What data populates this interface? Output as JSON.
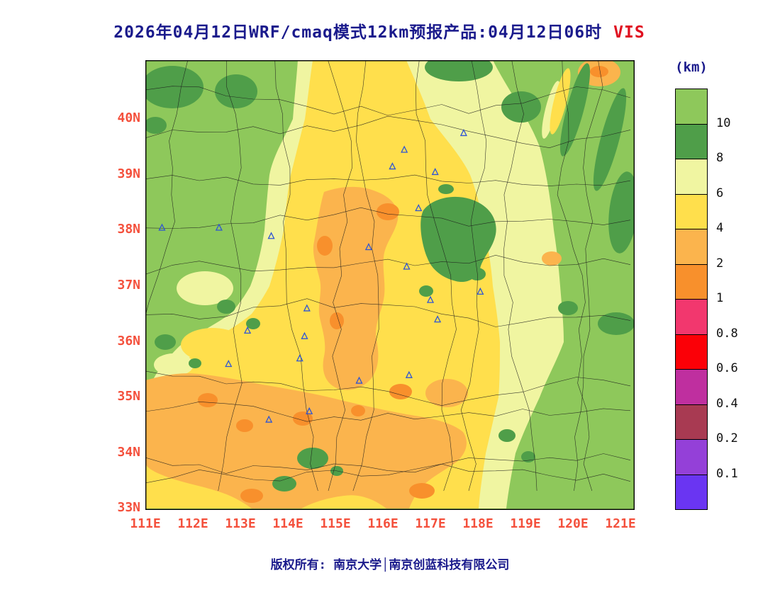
{
  "title": {
    "main": "2026年04月12日WRF/cmaq模式12km预报产品:04月12日06时",
    "variable": "VIS"
  },
  "legend": {
    "unit": "(km)",
    "boundary_labels": [
      "10",
      "8",
      "6",
      "4",
      "2",
      "1",
      "0.8",
      "0.6",
      "0.4",
      "0.2",
      "0.1"
    ],
    "colors_top_to_bottom": [
      "#8EC85B",
      "#4F9E49",
      "#F0F5A1",
      "#FFDF4C",
      "#FBB44D",
      "#F8902C",
      "#F2376E",
      "#FB0007",
      "#BF2F9F",
      "#A83A52",
      "#9440D8",
      "#6A35F2"
    ]
  },
  "axes": {
    "lat_labels": [
      "40N",
      "39N",
      "38N",
      "37N",
      "36N",
      "35N",
      "34N",
      "33N"
    ],
    "lon_labels": [
      "111E",
      "112E",
      "113E",
      "114E",
      "115E",
      "116E",
      "117E",
      "118E",
      "119E",
      "120E",
      "121E"
    ]
  },
  "footer": {
    "copyright": "版权所有: 南京大学│南京创蓝科技有限公司"
  },
  "chart_data": {
    "type": "heatmap",
    "title": "2026年04月12日WRF/cmaq模式12km预报产品:04月12日06时 VIS",
    "variable": "visibility forecast (WRF/CMAQ 12km)",
    "unit": "km",
    "lon_range": [
      111,
      121.3
    ],
    "lat_range": [
      33,
      41.05
    ],
    "grid_on": false,
    "legend_position": "right",
    "contour_levels_km": [
      0.1,
      0.2,
      0.4,
      0.6,
      0.8,
      1,
      2,
      4,
      6,
      8,
      10
    ],
    "level_colors_low_to_high": [
      "#6A35F2",
      "#9440D8",
      "#A83A52",
      "#BF2F9F",
      "#FB0007",
      "#F2376E",
      "#F8902C",
      "#FBB44D",
      "#FFDF4C",
      "#F0F5A1",
      "#4F9E49",
      "#8EC85B"
    ],
    "grid_estimate": {
      "lons": [
        111,
        112,
        113,
        114,
        115,
        116,
        117,
        118,
        119,
        120,
        121
      ],
      "lats": [
        40,
        39,
        38,
        37,
        36,
        35,
        34,
        33
      ],
      "visibility_km": [
        [
          11,
          11,
          10,
          7,
          6,
          7,
          7,
          7,
          9,
          10,
          5
        ],
        [
          11,
          10,
          9,
          6,
          5,
          6,
          6,
          8,
          7,
          10,
          10
        ],
        [
          11,
          10,
          8,
          5,
          4,
          3,
          7,
          9,
          7,
          10,
          10
        ],
        [
          10,
          9,
          7,
          5,
          3,
          5,
          9,
          8,
          6,
          11,
          11
        ],
        [
          7,
          6,
          7,
          4,
          3,
          3,
          5,
          5,
          6,
          10,
          11
        ],
        [
          5,
          4,
          5,
          3,
          2,
          3,
          3,
          4,
          7,
          10,
          11
        ],
        [
          3,
          3,
          4,
          3,
          3,
          3,
          4,
          6,
          8,
          10,
          11
        ],
        [
          4,
          5,
          3,
          5,
          5,
          3,
          5,
          7,
          9,
          11,
          11
        ]
      ]
    },
    "stations_lon_lat": [
      [
        117.7,
        39.75
      ],
      [
        116.45,
        39.45
      ],
      [
        116.2,
        39.15
      ],
      [
        117.1,
        39.05
      ],
      [
        116.75,
        38.4
      ],
      [
        111.35,
        38.05
      ],
      [
        112.55,
        38.05
      ],
      [
        113.65,
        37.9
      ],
      [
        115.7,
        37.7
      ],
      [
        116.5,
        37.35
      ],
      [
        118.05,
        36.9
      ],
      [
        117.0,
        36.75
      ],
      [
        114.4,
        36.6
      ],
      [
        117.15,
        36.4
      ],
      [
        113.15,
        36.2
      ],
      [
        114.35,
        36.1
      ],
      [
        112.75,
        35.6
      ],
      [
        114.25,
        35.7
      ],
      [
        115.5,
        35.3
      ],
      [
        116.55,
        35.4
      ],
      [
        113.6,
        34.6
      ],
      [
        114.45,
        34.75
      ]
    ]
  }
}
